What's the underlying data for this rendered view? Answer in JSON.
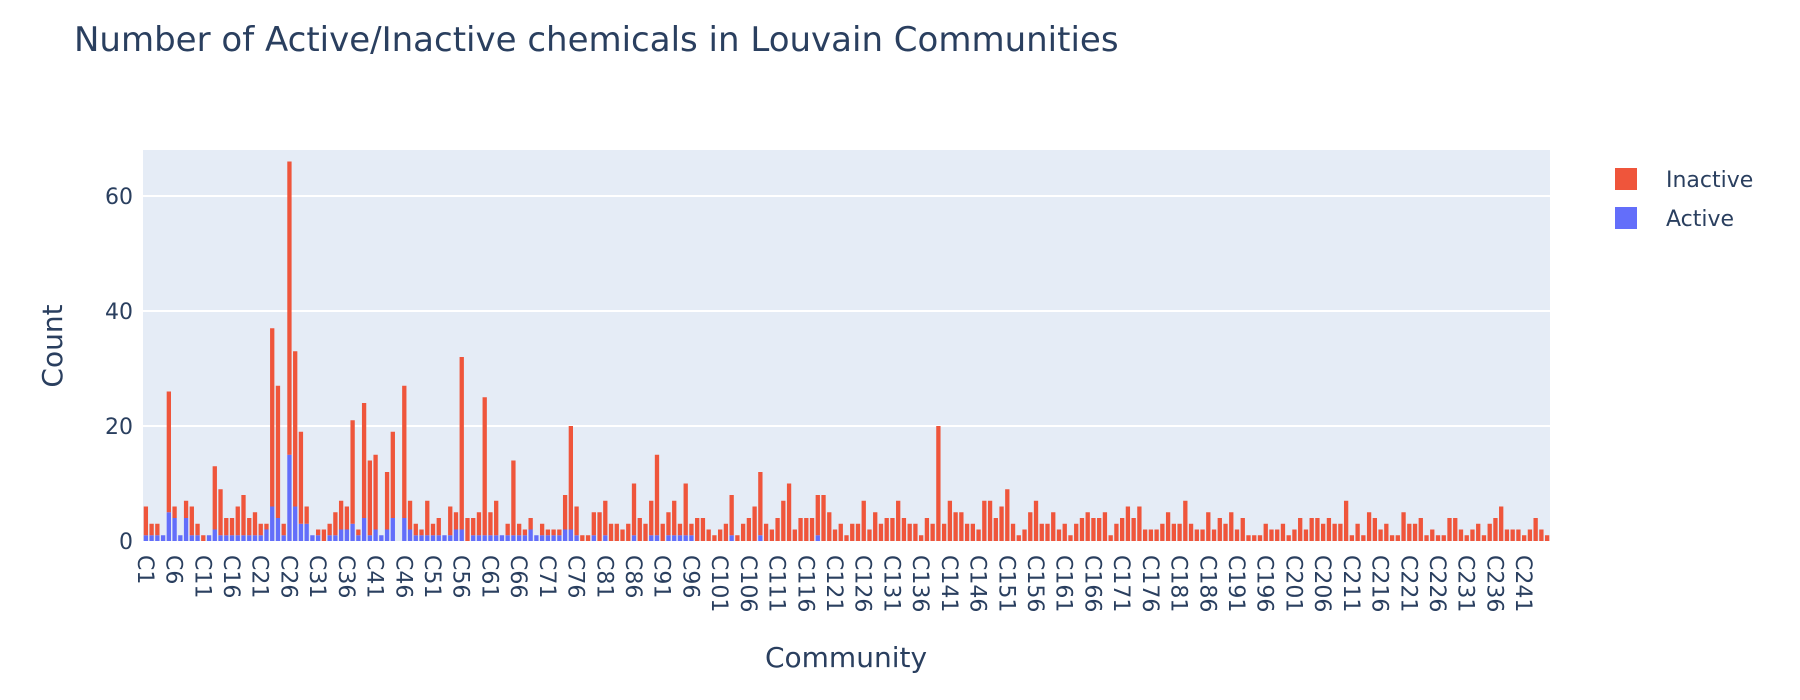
{
  "chart_data": {
    "type": "bar",
    "barmode": "stack",
    "title": "Number of Active/Inactive chemicals in Louvain Communities",
    "xlabel": "Community",
    "ylabel": "Count",
    "ylim": [
      0,
      68
    ],
    "yticks": [
      0,
      20,
      40,
      60
    ],
    "grid": true,
    "legend_position": "top-right",
    "category_prefix": "C",
    "category_count": 245,
    "tick_label_every": 5,
    "colors": {
      "Inactive": "#EF553B",
      "Active": "#636EFA",
      "plot_bg": "#E5ECF6"
    },
    "series": [
      {
        "name": "Inactive",
        "values": [
          5,
          2,
          2,
          0,
          21,
          2,
          0,
          3,
          5,
          2,
          1,
          0,
          11,
          8,
          3,
          3,
          5,
          7,
          3,
          4,
          2,
          1,
          31,
          23,
          2,
          51,
          27,
          16,
          3,
          0,
          1,
          2,
          2,
          4,
          5,
          4,
          18,
          1,
          20,
          13,
          13,
          0,
          10,
          15,
          0,
          23,
          5,
          2,
          1,
          6,
          2,
          3,
          0,
          5,
          3,
          30,
          4,
          3,
          4,
          24,
          4,
          6,
          0,
          2,
          13,
          2,
          1,
          2,
          0,
          2,
          1,
          1,
          1,
          6,
          18,
          5,
          1,
          1,
          4,
          5,
          6,
          3,
          3,
          2,
          3,
          9,
          4,
          3,
          6,
          14,
          3,
          4,
          6,
          2,
          9,
          2,
          4,
          4,
          2,
          1,
          2,
          3,
          7,
          1,
          3,
          4,
          6,
          11,
          3,
          2,
          4,
          7,
          10,
          2,
          4,
          4,
          4,
          7,
          8,
          5,
          2,
          3,
          1,
          3,
          3,
          7,
          2,
          5,
          3,
          4,
          4,
          7,
          4,
          3,
          3,
          1,
          4,
          3,
          20,
          3,
          7,
          5,
          5,
          3,
          3,
          2,
          7,
          7,
          4,
          6,
          9,
          3,
          1,
          2,
          5,
          7,
          3,
          3,
          5,
          2,
          3,
          1,
          3,
          4,
          5,
          4,
          4,
          5,
          1,
          3,
          4,
          6,
          4,
          6,
          2,
          2,
          2,
          3,
          5,
          3,
          3,
          7,
          3,
          2,
          2,
          5,
          2,
          4,
          3,
          5,
          2,
          4,
          1,
          1,
          1,
          3,
          2,
          2,
          3,
          1,
          2,
          4,
          2,
          4,
          4,
          3,
          4,
          3,
          3,
          7,
          1,
          3,
          1,
          5,
          4,
          2,
          3,
          1,
          1,
          5,
          3,
          3,
          4,
          1,
          2,
          1,
          1,
          4,
          4,
          2,
          1,
          2,
          3,
          1,
          3,
          4,
          6,
          2,
          2,
          2,
          1,
          2,
          4,
          2,
          1
        ],
        "note": ""
      },
      {
        "name": "Active",
        "values": [
          1,
          1,
          1,
          1,
          5,
          4,
          1,
          4,
          1,
          1,
          0,
          1,
          2,
          1,
          1,
          1,
          1,
          1,
          1,
          1,
          1,
          2,
          6,
          4,
          1,
          15,
          6,
          3,
          3,
          1,
          1,
          0,
          1,
          1,
          2,
          2,
          3,
          1,
          4,
          1,
          2,
          1,
          2,
          4,
          0,
          4,
          2,
          1,
          1,
          1,
          1,
          1,
          1,
          1,
          2,
          2,
          0,
          1,
          1,
          1,
          1,
          1,
          1,
          1,
          1,
          1,
          1,
          2,
          1,
          1,
          1,
          1,
          1,
          2,
          2,
          1,
          0,
          0,
          1,
          0,
          1,
          0,
          0,
          0,
          0,
          1,
          0,
          0,
          1,
          1,
          0,
          1,
          1,
          1,
          1,
          1,
          0,
          0,
          0,
          0,
          0,
          0,
          1,
          0,
          0,
          0,
          0,
          1,
          0,
          0,
          0,
          0,
          0,
          0,
          0,
          0,
          0,
          1,
          0,
          0,
          0,
          0,
          0,
          0,
          0,
          0,
          0,
          0,
          0,
          0,
          0,
          0,
          0,
          0,
          0,
          0,
          0,
          0,
          0,
          0,
          0,
          0,
          0,
          0,
          0,
          0,
          0,
          0,
          0,
          0,
          0,
          0,
          0,
          0,
          0,
          0,
          0,
          0,
          0,
          0,
          0,
          0,
          0,
          0,
          0,
          0,
          0,
          0,
          0,
          0,
          0,
          0,
          0,
          0,
          0,
          0,
          0,
          0,
          0,
          0,
          0,
          0,
          0,
          0,
          0,
          0,
          0,
          0,
          0,
          0,
          0,
          0,
          0,
          0,
          0,
          0,
          0,
          0,
          0,
          0,
          0,
          0,
          0,
          0,
          0,
          0,
          0,
          0,
          0,
          0,
          0,
          0,
          0,
          0,
          0,
          0,
          0,
          0,
          0,
          0,
          0,
          0,
          0,
          0,
          0,
          0,
          0,
          0,
          0,
          0,
          0,
          0,
          0,
          0,
          0,
          0,
          0,
          0,
          0,
          0,
          0,
          0,
          0,
          0,
          0,
          0,
          0,
          0,
          0,
          0,
          0,
          0,
          0
        ]
      }
    ]
  }
}
